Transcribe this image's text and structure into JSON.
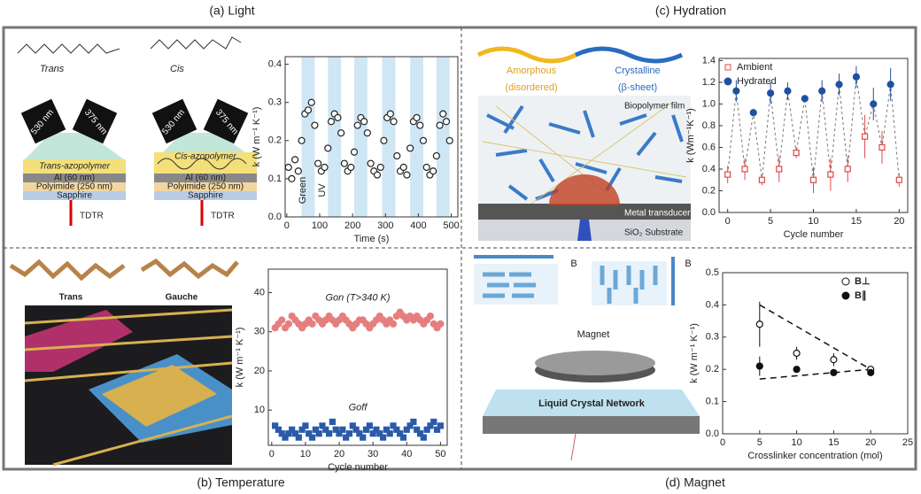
{
  "captions": {
    "a": "(a) Light",
    "b": "(b) Temperature",
    "c": "(c) Hydration",
    "d": "(d) Magnet"
  },
  "illustration": {
    "a": {
      "trans": "Trans",
      "cis": "Cis",
      "stacks": [
        {
          "wl1": "530 nm",
          "wl2": "375 nm",
          "poly": "Trans-azopolymer",
          "al": "Al (60 nm)",
          "pi": "Polyimide (250 nm)",
          "sapphire": "Sapphire",
          "tdtr": "TDTR"
        },
        {
          "wl1": "530 nm",
          "wl2": "375 nm",
          "poly": "Cis-azopolymer",
          "al": "Al (60 nm)",
          "pi": "Polyimide (250 nm)",
          "sapphire": "Sapphire",
          "tdtr": "TDTR"
        }
      ]
    },
    "b": {
      "trans": "Trans",
      "gauche": "Gauche"
    },
    "c": {
      "amorphous": "Amorphous",
      "disordered": "(disordered)",
      "crystalline": "Crystalline",
      "sheet": "(β-sheet)",
      "film": "Biopolymer film",
      "transducer": "Metal transducer",
      "substrate": "SiO₂ Substrate"
    },
    "d": {
      "b1": "B",
      "b2": "B",
      "magnet": "Magnet",
      "lcn": "Liquid Crystal Network"
    }
  },
  "chart_data": [
    {
      "type": "scatter",
      "xlabel": "Time (s)",
      "ylabel": "k (W m⁻¹ K⁻¹)",
      "xlim": [
        -5,
        520
      ],
      "ylim": [
        0,
        0.42
      ],
      "xticks": [
        0,
        100,
        200,
        300,
        400,
        500
      ],
      "yticks": [
        {
          "value": 0,
          "label": "0.0"
        },
        0.1,
        0.2,
        0.3,
        0.4
      ],
      "annotations": [
        "Green",
        "UV"
      ],
      "band_color": "#cfe6f5",
      "bands": [
        [
          45,
          85
        ],
        [
          125,
          165
        ],
        [
          205,
          245
        ],
        [
          290,
          330
        ],
        [
          375,
          415
        ],
        [
          455,
          495
        ]
      ],
      "x": [
        5,
        15,
        25,
        35,
        45,
        55,
        65,
        75,
        85,
        95,
        105,
        115,
        125,
        135,
        145,
        155,
        165,
        175,
        185,
        195,
        205,
        215,
        225,
        235,
        245,
        255,
        265,
        275,
        285,
        295,
        305,
        315,
        325,
        335,
        345,
        355,
        365,
        375,
        385,
        395,
        405,
        415,
        425,
        435,
        445,
        455,
        465,
        475,
        485,
        495
      ],
      "series": [
        {
          "name": "k",
          "marker": "open-circle",
          "color": "#222",
          "values": [
            0.13,
            0.1,
            0.15,
            0.12,
            0.2,
            0.27,
            0.28,
            0.3,
            0.24,
            0.14,
            0.12,
            0.13,
            0.18,
            0.25,
            0.27,
            0.26,
            0.22,
            0.14,
            0.12,
            0.13,
            0.17,
            0.24,
            0.26,
            0.25,
            0.22,
            0.14,
            0.12,
            0.11,
            0.13,
            0.2,
            0.26,
            0.27,
            0.25,
            0.16,
            0.12,
            0.13,
            0.11,
            0.18,
            0.25,
            0.26,
            0.24,
            0.2,
            0.13,
            0.11,
            0.12,
            0.16,
            0.24,
            0.27,
            0.25,
            0.2
          ]
        }
      ]
    },
    {
      "type": "scatter",
      "xlabel": "Cycle number",
      "ylabel": "k (W m⁻¹ K⁻¹)",
      "xlim": [
        -1,
        52
      ],
      "ylim": [
        1,
        46
      ],
      "xticks": [
        0,
        10,
        20,
        30,
        40,
        50
      ],
      "yticks": [
        10,
        20,
        30,
        40
      ],
      "legend": "inline",
      "x": [
        1,
        2,
        3,
        4,
        5,
        6,
        7,
        8,
        9,
        10,
        11,
        12,
        13,
        14,
        15,
        16,
        17,
        18,
        19,
        20,
        21,
        22,
        23,
        24,
        25,
        26,
        27,
        28,
        29,
        30,
        31,
        32,
        33,
        34,
        35,
        36,
        37,
        38,
        39,
        40,
        41,
        42,
        43,
        44,
        45,
        46,
        47,
        48,
        49,
        50
      ],
      "series": [
        {
          "name": "Gon (T>340 K)",
          "marker": "circle",
          "color": "#e57f7f",
          "values": [
            31,
            32,
            33,
            31,
            32,
            34,
            33,
            32,
            31,
            32,
            33,
            32,
            34,
            33,
            32,
            33,
            34,
            33,
            32,
            33,
            34,
            33,
            32,
            31,
            32,
            33,
            33,
            32,
            31,
            32,
            33,
            34,
            33,
            32,
            33,
            32,
            34,
            35,
            34,
            33,
            34,
            33,
            34,
            33,
            32,
            33,
            34,
            32,
            31,
            32
          ]
        },
        {
          "name": "Goff",
          "marker": "square",
          "color": "#2a5aa8",
          "values": [
            6,
            5,
            4,
            3,
            4,
            5,
            4,
            3,
            5,
            6,
            4,
            3,
            5,
            4,
            6,
            5,
            4,
            7,
            5,
            4,
            5,
            3,
            4,
            6,
            5,
            4,
            3,
            5,
            6,
            4,
            5,
            4,
            3,
            5,
            4,
            6,
            5,
            4,
            3,
            5,
            6,
            7,
            5,
            4,
            3,
            5,
            6,
            7,
            5,
            6
          ]
        }
      ]
    },
    {
      "type": "scatter",
      "xlabel": "Cycle number",
      "ylabel": "k (Wm⁻¹K⁻¹)",
      "xlim": [
        -1,
        21
      ],
      "ylim": [
        0,
        1.42
      ],
      "xticks": [
        0,
        5,
        10,
        15,
        20
      ],
      "yticks": [
        {
          "value": 0,
          "label": "0.0"
        },
        0.2,
        0.4,
        0.6,
        0.8,
        {
          "value": 1,
          "label": "1.0"
        },
        1.2,
        1.4
      ],
      "legend": "upper left",
      "connected": true,
      "x": [
        0,
        1,
        2,
        3,
        4,
        5,
        6,
        7,
        8,
        9,
        10,
        11,
        12,
        13,
        14,
        15,
        16,
        17,
        18,
        19,
        20
      ],
      "series": [
        {
          "name": "Ambient",
          "marker": "open-square",
          "color": "#e04848",
          "values": [
            0.35,
            null,
            0.4,
            null,
            0.3,
            null,
            0.4,
            null,
            0.55,
            null,
            0.3,
            null,
            0.35,
            null,
            0.4,
            null,
            0.7,
            null,
            0.6,
            null,
            0.3
          ],
          "errors": [
            0.08,
            null,
            0.1,
            null,
            0.05,
            null,
            0.12,
            null,
            0.05,
            null,
            0.12,
            null,
            0.15,
            null,
            0.12,
            null,
            0.2,
            null,
            0.15,
            null,
            0.06
          ]
        },
        {
          "name": "Hydrated",
          "marker": "circle",
          "color": "#2050a0",
          "values": [
            null,
            1.12,
            null,
            0.92,
            null,
            1.1,
            null,
            1.12,
            null,
            1.05,
            null,
            1.12,
            null,
            1.18,
            null,
            1.25,
            null,
            1.0,
            null,
            1.18,
            null
          ],
          "errors": [
            null,
            0.1,
            null,
            0.02,
            null,
            0.1,
            null,
            0.08,
            null,
            0.02,
            null,
            0.1,
            null,
            0.1,
            null,
            0.1,
            null,
            0.15,
            null,
            0.15,
            null
          ]
        }
      ]
    },
    {
      "type": "scatter",
      "xlabel": "Crosslinker concentration (mol)",
      "ylabel": "k (W m⁻¹ K⁻¹)",
      "xlim": [
        0,
        25
      ],
      "ylim": [
        0,
        0.5
      ],
      "xticks": [
        0,
        5,
        10,
        15,
        20,
        25
      ],
      "yticks": [
        {
          "value": 0,
          "label": "0.0"
        },
        0.1,
        0.2,
        0.3,
        0.4,
        0.5
      ],
      "legend": "upper right",
      "x": [
        5,
        10,
        15,
        20
      ],
      "series": [
        {
          "name": "B⊥",
          "marker": "open-circle",
          "color": "#111",
          "values": [
            0.34,
            0.25,
            0.23,
            0.2
          ],
          "errors": [
            0.07,
            0.02,
            0.02,
            0.01
          ]
        },
        {
          "name": "B∥",
          "marker": "circle",
          "color": "#111",
          "values": [
            0.21,
            0.2,
            0.19,
            0.19
          ],
          "errors": [
            0.03,
            0.01,
            0.01,
            0.01
          ]
        }
      ],
      "fits": [
        {
          "x": [
            5,
            20
          ],
          "y": [
            0.4,
            0.2
          ]
        },
        {
          "x": [
            5,
            20
          ],
          "y": [
            0.17,
            0.2
          ]
        }
      ]
    }
  ]
}
